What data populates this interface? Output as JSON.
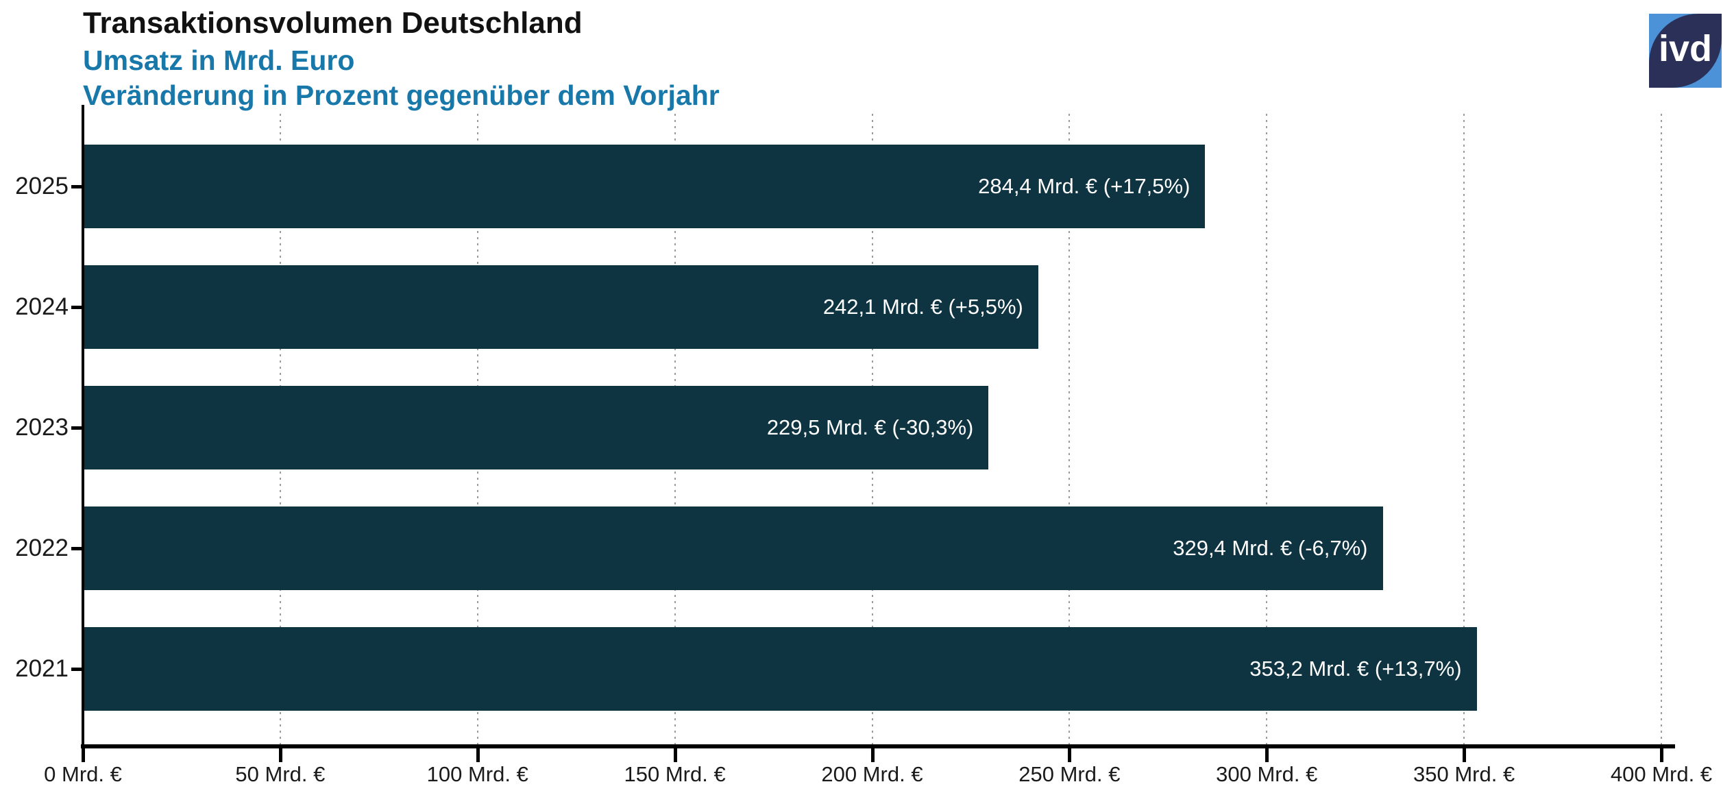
{
  "header": {
    "title": "Transaktionsvolumen Deutschland",
    "subtitle1": "Umsatz in Mrd. Euro",
    "subtitle2": "Veränderung in Prozent gegenüber dem Vorjahr"
  },
  "logo": {
    "text": "ivd"
  },
  "colors": {
    "bar": "#0E3341",
    "subtitle": "#1878AA",
    "logo_navy": "#2A3057",
    "logo_blue": "#4C92D9",
    "grid": "#9C9C9C",
    "axis": "#000000",
    "bar_label": "#FFFFFF"
  },
  "chart_data": {
    "type": "bar",
    "orientation": "horizontal",
    "title": "Transaktionsvolumen Deutschland",
    "subtitle": [
      "Umsatz in Mrd. Euro",
      "Veränderung in Prozent gegenüber dem Vorjahr"
    ],
    "categories": [
      "2025",
      "2024",
      "2023",
      "2022",
      "2021"
    ],
    "values": [
      284.4,
      242.1,
      229.5,
      329.4,
      353.2
    ],
    "bar_labels": [
      "284,4 Mrd. € (+17,5%)",
      "242,1 Mrd. € (+5,5%)",
      "229,5 Mrd. € (-30,3%)",
      "329,4 Mrd. € (-6,7%)",
      "353,2 Mrd. € (+13,7%)"
    ],
    "change_pct": [
      17.5,
      5.5,
      -30.3,
      -6.7,
      13.7
    ],
    "xlim": [
      0,
      400
    ],
    "xticks": [
      0,
      50,
      100,
      150,
      200,
      250,
      300,
      350,
      400
    ],
    "xtick_labels": [
      "0 Mrd. €",
      "50 Mrd. €",
      "100 Mrd. €",
      "150 Mrd. €",
      "200 Mrd. €",
      "250 Mrd. €",
      "300 Mrd. €",
      "350 Mrd. €",
      "400 Mrd. €"
    ],
    "grid": "vertical-dotted",
    "legend": "none"
  }
}
